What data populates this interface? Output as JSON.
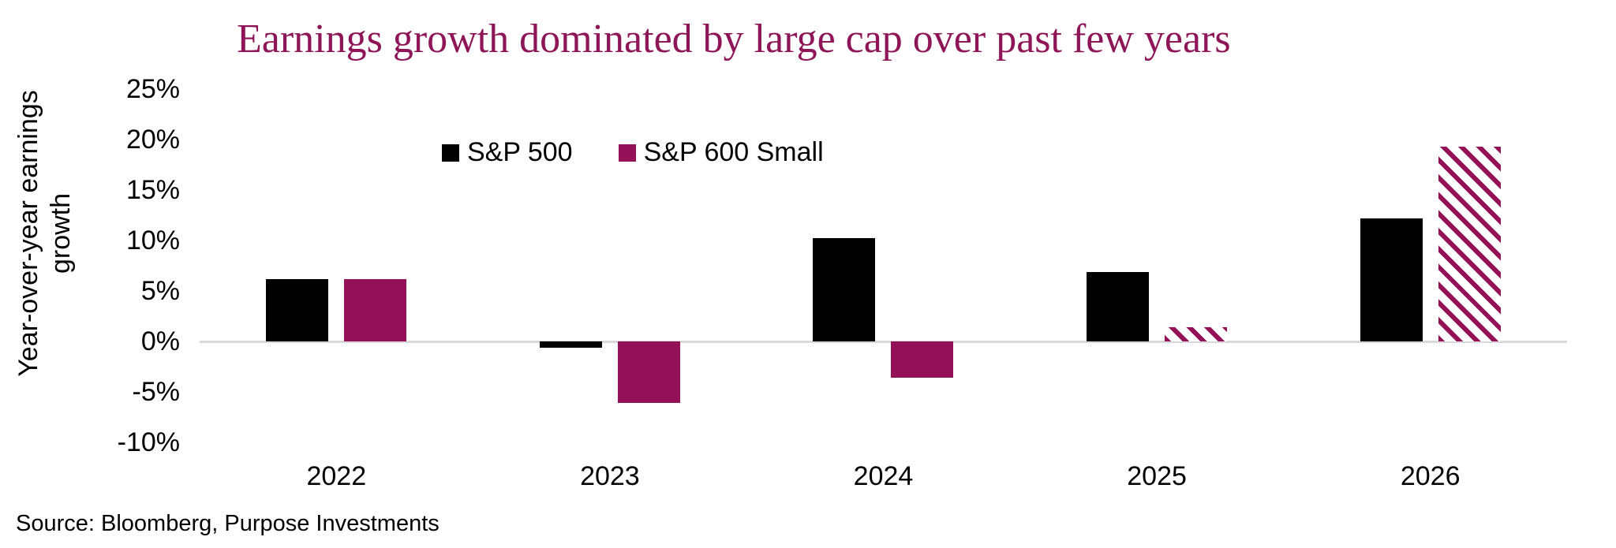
{
  "header": {
    "title_color": "#8E1557"
  },
  "footer": {
    "source": "Source: Bloomberg, Purpose Investments"
  },
  "chart_data": {
    "type": "bar",
    "title": "Earnings growth dominated by large cap over past few years",
    "ylabel_lines": [
      "Year-over-year earnings",
      "growth"
    ],
    "categories": [
      "2022",
      "2023",
      "2024",
      "2025",
      "2026"
    ],
    "series": [
      {
        "name": "S&P 500",
        "color": "#000000",
        "values": [
          6.2,
          -0.6,
          10.2,
          6.9,
          12.2
        ],
        "hatched": [
          false,
          false,
          false,
          false,
          false
        ]
      },
      {
        "name": "S&P 600 Small",
        "color": "#941158",
        "values": [
          6.2,
          -6.1,
          -3.6,
          1.4,
          19.3
        ],
        "hatched": [
          false,
          false,
          false,
          true,
          true
        ]
      }
    ],
    "ylim": [
      -10,
      25
    ],
    "yticks": [
      25,
      20,
      15,
      10,
      5,
      0,
      -5,
      -10
    ],
    "ytick_labels": [
      "25%",
      "20%",
      "15%",
      "10%",
      "5%",
      "0%",
      "-5%",
      "-10%"
    ],
    "axis_line_color": "#D9D9D9",
    "grid": false,
    "legend_position": "top-center"
  }
}
